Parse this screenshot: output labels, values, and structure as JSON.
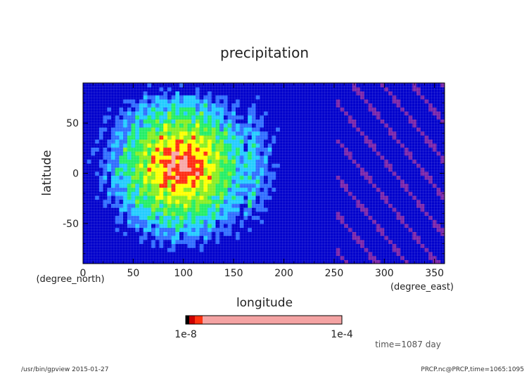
{
  "chart_data": {
    "type": "heatmap",
    "title": "precipitation",
    "xlabel": "longitude",
    "ylabel": "latitude",
    "x_unit": "(degree_east)",
    "y_unit": "(degree_north)",
    "xlim": [
      0,
      360
    ],
    "ylim": [
      -90,
      90
    ],
    "x_ticks": [
      "0",
      "50",
      "100",
      "150",
      "200",
      "250",
      "300",
      "350"
    ],
    "y_ticks": [
      "50",
      "0",
      "-50"
    ],
    "colorbar": {
      "max_label": "1e-4",
      "min_label": "1e-8",
      "colors": [
        "#000000",
        "#cc0000",
        "#ff3311",
        "#f4a3a3"
      ]
    },
    "field_peak": {
      "lon": 97,
      "lat": 8
    },
    "time_label": "time=1087 day",
    "footer_left": "/usr/bin/gpview  2015-01-27",
    "footer_right": "PRCP.nc@PRCP,time=1065:1095"
  }
}
